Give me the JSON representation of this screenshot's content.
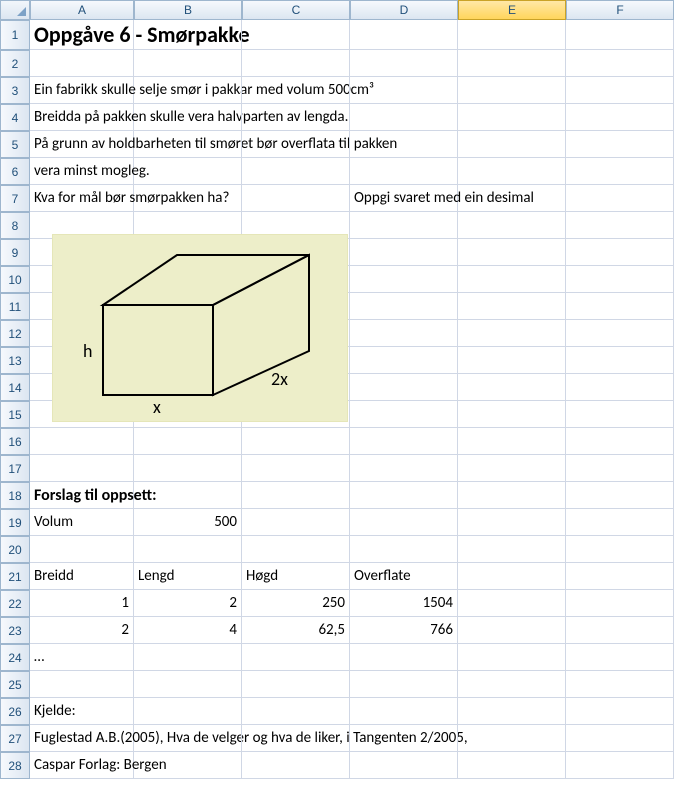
{
  "columns": [
    "A",
    "B",
    "C",
    "D",
    "E",
    "F"
  ],
  "selected_col_index": 4,
  "row_count": 28,
  "tall_row_index": 1,
  "title": "Oppgåve 6 - Smørpakke",
  "text_rows": {
    "3": {
      "col": "A",
      "text": "Ein fabrikk skulle selje smør i pakkar med volum 500cm³"
    },
    "4": {
      "col": "A",
      "text": "Breidda på pakken skulle vera halvparten av lengda."
    },
    "5": {
      "col": "A",
      "text": "På grunn av holdbarheten til smøret bør overflata til pakken"
    },
    "6": {
      "col": "A",
      "text": "vera minst mogleg."
    },
    "7a": {
      "col": "A",
      "text": "Kva for mål bør smørpakken ha?"
    },
    "7b": {
      "col": "D",
      "text": "Oppgi svaret med ein desimal"
    },
    "18": {
      "col": "A",
      "text": "Forslag til oppsett:",
      "bold": true
    },
    "19a": {
      "col": "A",
      "text": "Volum"
    },
    "19b": {
      "col": "B",
      "text": "500",
      "num": true
    },
    "21a": {
      "col": "A",
      "text": "Breidd"
    },
    "21b": {
      "col": "B",
      "text": "Lengd"
    },
    "21c": {
      "col": "C",
      "text": "Høgd"
    },
    "21d": {
      "col": "D",
      "text": "Overflate"
    },
    "22a": {
      "col": "A",
      "text": "1",
      "num": true
    },
    "22b": {
      "col": "B",
      "text": "2",
      "num": true
    },
    "22c": {
      "col": "C",
      "text": "250",
      "num": true
    },
    "22d": {
      "col": "D",
      "text": "1504",
      "num": true
    },
    "23a": {
      "col": "A",
      "text": "2",
      "num": true
    },
    "23b": {
      "col": "B",
      "text": "4",
      "num": true
    },
    "23c": {
      "col": "C",
      "text": "62,5",
      "num": true
    },
    "23d": {
      "col": "D",
      "text": "766",
      "num": true
    },
    "24": {
      "col": "A",
      "text": "…"
    },
    "26": {
      "col": "A",
      "text": "Kjelde:"
    },
    "27": {
      "col": "A",
      "text": "Fuglestad A.B.(2005), Hva de velger og hva de liker, i Tangenten 2/2005,"
    },
    "28": {
      "col": "A",
      "text": "Caspar Forlag: Bergen"
    }
  },
  "diagram": {
    "labels": {
      "h": "h",
      "x": "x",
      "tx": "2x"
    },
    "bg": "#edeec9",
    "stroke": "#000000",
    "stroke_width": 2,
    "font_size": 18
  }
}
